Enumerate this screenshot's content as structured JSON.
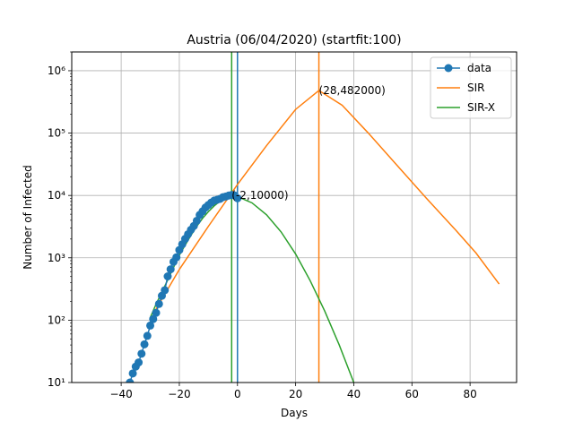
{
  "chart_data": {
    "type": "line",
    "title": "Austria (06/04/2020) (startfit:100)",
    "xlabel": "Days",
    "ylabel": "Number of Infected",
    "xlim": [
      -57,
      96
    ],
    "ylim": [
      10,
      2000000
    ],
    "yscale": "log",
    "grid": true,
    "legend_position": "top-right",
    "x_ticks": [
      -40,
      -20,
      0,
      20,
      40,
      60,
      80
    ],
    "x_tick_labels": [
      "−40",
      "−20",
      "0",
      "20",
      "40",
      "60",
      "80"
    ],
    "y_ticks": [
      10,
      100,
      1000,
      10000,
      100000,
      1000000
    ],
    "y_tick_labels": [
      "10¹",
      "10²",
      "10³",
      "10⁴",
      "10⁵",
      "10⁶"
    ],
    "series": [
      {
        "name": "data",
        "color": "#1f77b4",
        "marker": "circle",
        "x": [
          -37,
          -36,
          -35,
          -34,
          -33,
          -32,
          -31,
          -30,
          -29,
          -28,
          -27,
          -26,
          -25,
          -24,
          -23,
          -22,
          -21,
          -20,
          -19,
          -18,
          -17,
          -16,
          -15,
          -14,
          -13,
          -12,
          -11,
          -10,
          -9,
          -8,
          -7,
          -6,
          -5,
          -4,
          -3,
          -2,
          -1,
          0
        ],
        "y": [
          10,
          14,
          18,
          21,
          29,
          41,
          56,
          82,
          104,
          131,
          182,
          246,
          302,
          504,
          655,
          860,
          1018,
          1332,
          1646,
          2013,
          2388,
          2814,
          3244,
          3924,
          4876,
          5560,
          6398,
          7029,
          7697,
          8271,
          8536,
          8813,
          9377,
          9618,
          9974,
          10180,
          10000,
          9000
        ]
      },
      {
        "name": "SIR",
        "color": "#ff7f0e",
        "x": [
          -28,
          -20,
          -10,
          0,
          10,
          20,
          28,
          36,
          45,
          55,
          65,
          75,
          82,
          90
        ],
        "y": [
          150,
          650,
          3200,
          15000,
          63000,
          240000,
          482000,
          280000,
          100000,
          30000,
          9000,
          2800,
          1200,
          380
        ]
      },
      {
        "name": "SIR-X",
        "color": "#2ca02c",
        "x": [
          -30,
          -28,
          -26,
          -24,
          -22,
          -20,
          -18,
          -16,
          -14,
          -12,
          -10,
          -8,
          -6,
          -4,
          -2,
          0,
          5,
          10,
          15,
          20,
          25,
          30,
          35,
          40
        ],
        "y": [
          110,
          180,
          280,
          440,
          700,
          1100,
          1600,
          2300,
          3200,
          4300,
          5500,
          6800,
          8100,
          9200,
          10000,
          9600,
          7600,
          4900,
          2600,
          1150,
          430,
          140,
          40,
          10
        ]
      }
    ],
    "vlines": [
      {
        "x": 0,
        "color": "#1f77b4"
      },
      {
        "x": -2,
        "color": "#2ca02c"
      },
      {
        "x": 28,
        "color": "#ff7f0e"
      }
    ],
    "annotations": [
      {
        "x": 28,
        "y": 482000,
        "text": "(28,482000)"
      },
      {
        "x": -2,
        "y": 10000,
        "text": "(-2,10000)"
      }
    ]
  }
}
